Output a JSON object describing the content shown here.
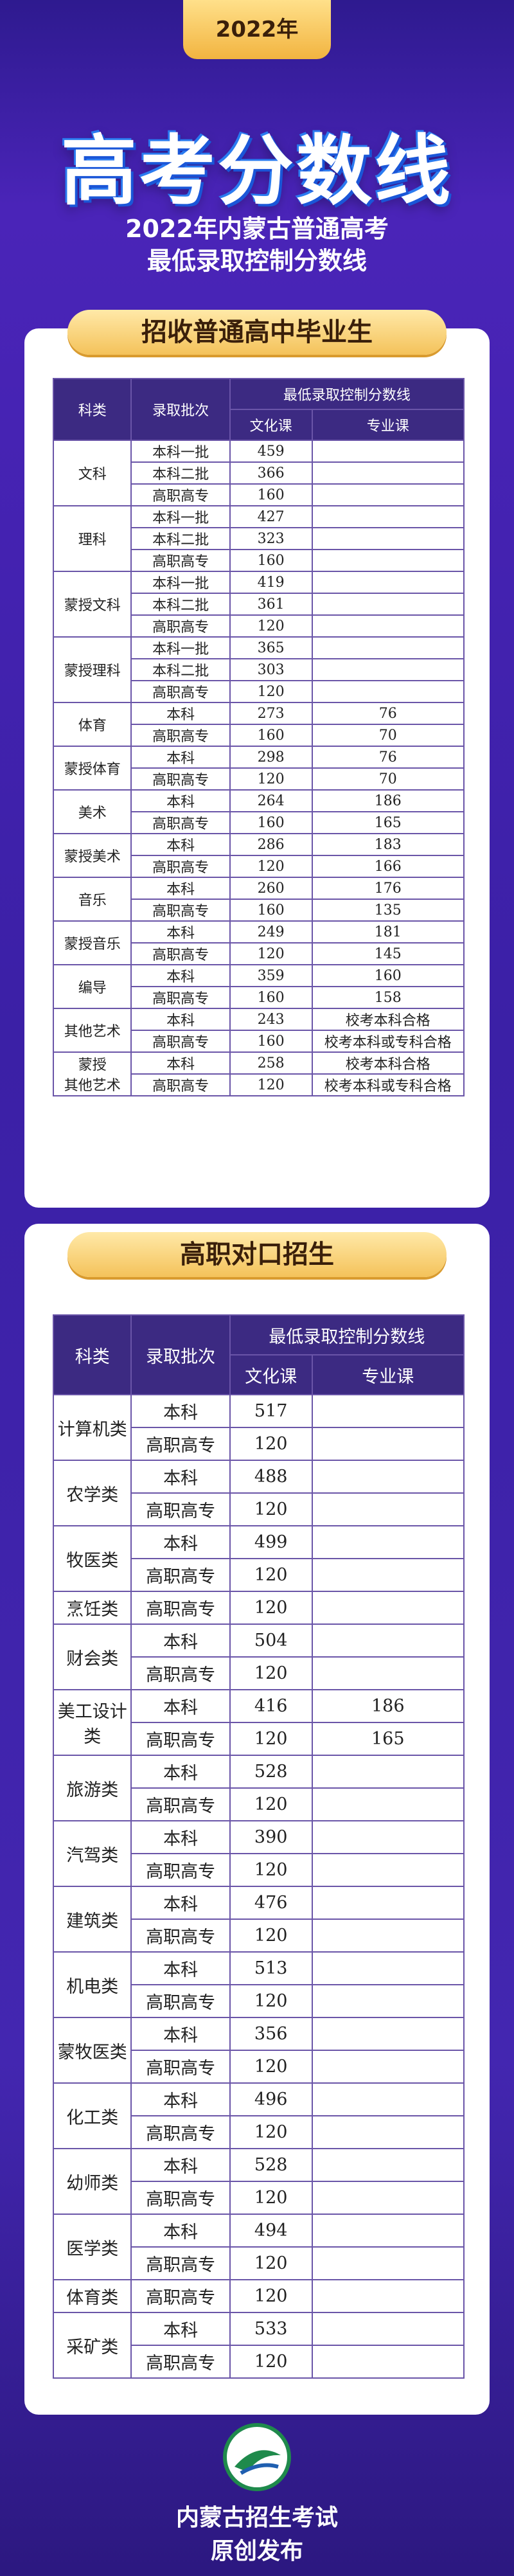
{
  "header": {
    "badge": "2022年",
    "title": "高考分数线",
    "subtitle": [
      "2022年内蒙古普通高考",
      "最低录取控制分数线"
    ]
  },
  "sections": [
    {
      "title": "招收普通高中毕业生",
      "columns": {
        "category": "科类",
        "batch": "录取批次",
        "score": "最低录取控制分数线",
        "culture": "文化课",
        "major": "专业课"
      },
      "groups": [
        {
          "label": [
            "文科"
          ],
          "rows": [
            [
              "本科一批",
              459
            ],
            [
              "本科二批",
              366
            ],
            [
              "高职高专",
              160
            ]
          ]
        },
        {
          "label": [
            "理科"
          ],
          "rows": [
            [
              "本科一批",
              427
            ],
            [
              "本科二批",
              323
            ],
            [
              "高职高专",
              160
            ]
          ]
        },
        {
          "label": [
            "蒙授文科"
          ],
          "rows": [
            [
              "本科一批",
              419
            ],
            [
              "本科二批",
              361
            ],
            [
              "高职高专",
              120
            ]
          ]
        },
        {
          "label": [
            "蒙授理科"
          ],
          "rows": [
            [
              "本科一批",
              365
            ],
            [
              "本科二批",
              303
            ],
            [
              "高职高专",
              120
            ]
          ]
        },
        {
          "label": [
            "体育"
          ],
          "rows": [
            [
              "本科",
              273,
              76
            ],
            [
              "高职高专",
              160,
              70
            ]
          ]
        },
        {
          "label": [
            "蒙授体育"
          ],
          "rows": [
            [
              "本科",
              298,
              76
            ],
            [
              "高职高专",
              120,
              70
            ]
          ]
        },
        {
          "label": [
            "美术"
          ],
          "rows": [
            [
              "本科",
              264,
              186
            ],
            [
              "高职高专",
              160,
              165
            ]
          ]
        },
        {
          "label": [
            "蒙授美术"
          ],
          "rows": [
            [
              "本科",
              286,
              183
            ],
            [
              "高职高专",
              120,
              166
            ]
          ]
        },
        {
          "label": [
            "音乐"
          ],
          "rows": [
            [
              "本科",
              260,
              176
            ],
            [
              "高职高专",
              160,
              135
            ]
          ]
        },
        {
          "label": [
            "蒙授音乐"
          ],
          "rows": [
            [
              "本科",
              249,
              181
            ],
            [
              "高职高专",
              120,
              145
            ]
          ]
        },
        {
          "label": [
            "编导"
          ],
          "rows": [
            [
              "本科",
              359,
              160
            ],
            [
              "高职高专",
              160,
              158
            ]
          ]
        },
        {
          "label": [
            "其他艺术"
          ],
          "rows": [
            [
              "本科",
              243,
              "校考本科合格"
            ],
            [
              "高职高专",
              160,
              "校考本科或专科合格"
            ]
          ]
        },
        {
          "label": [
            "蒙授",
            "其他艺术"
          ],
          "rows": [
            [
              "本科",
              258,
              "校考本科合格"
            ],
            [
              "高职高专",
              120,
              "校考本科或专科合格"
            ]
          ]
        }
      ]
    },
    {
      "title": "高职对口招生",
      "columns": {
        "category": "科类",
        "batch": "录取批次",
        "score": "最低录取控制分数线",
        "culture": "文化课",
        "major": "专业课"
      },
      "groups": [
        {
          "label": [
            "计算机类"
          ],
          "rows": [
            [
              "本科",
              517
            ],
            [
              "高职高专",
              120
            ]
          ]
        },
        {
          "label": [
            "农学类"
          ],
          "rows": [
            [
              "本科",
              488
            ],
            [
              "高职高专",
              120
            ]
          ]
        },
        {
          "label": [
            "牧医类"
          ],
          "rows": [
            [
              "本科",
              499
            ],
            [
              "高职高专",
              120
            ]
          ]
        },
        {
          "label": [
            "烹饪类"
          ],
          "rows": [
            [
              "高职高专",
              120
            ]
          ]
        },
        {
          "label": [
            "财会类"
          ],
          "rows": [
            [
              "本科",
              504
            ],
            [
              "高职高专",
              120
            ]
          ]
        },
        {
          "label": [
            "美工设计类"
          ],
          "rows": [
            [
              "本科",
              416,
              186
            ],
            [
              "高职高专",
              120,
              165
            ]
          ]
        },
        {
          "label": [
            "旅游类"
          ],
          "rows": [
            [
              "本科",
              528
            ],
            [
              "高职高专",
              120
            ]
          ]
        },
        {
          "label": [
            "汽驾类"
          ],
          "rows": [
            [
              "本科",
              390
            ],
            [
              "高职高专",
              120
            ]
          ]
        },
        {
          "label": [
            "建筑类"
          ],
          "rows": [
            [
              "本科",
              476
            ],
            [
              "高职高专",
              120
            ]
          ]
        },
        {
          "label": [
            "机电类"
          ],
          "rows": [
            [
              "本科",
              513
            ],
            [
              "高职高专",
              120
            ]
          ]
        },
        {
          "label": [
            "蒙牧医类"
          ],
          "rows": [
            [
              "本科",
              356
            ],
            [
              "高职高专",
              120
            ]
          ]
        },
        {
          "label": [
            "化工类"
          ],
          "rows": [
            [
              "本科",
              496
            ],
            [
              "高职高专",
              120
            ]
          ]
        },
        {
          "label": [
            "幼师类"
          ],
          "rows": [
            [
              "本科",
              528
            ],
            [
              "高职高专",
              120
            ]
          ]
        },
        {
          "label": [
            "医学类"
          ],
          "rows": [
            [
              "本科",
              494
            ],
            [
              "高职高专",
              120
            ]
          ]
        },
        {
          "label": [
            "体育类"
          ],
          "rows": [
            [
              "高职高专",
              120
            ]
          ]
        },
        {
          "label": [
            "采矿类"
          ],
          "rows": [
            [
              "本科",
              533
            ],
            [
              "高职高专",
              120
            ]
          ]
        }
      ]
    }
  ],
  "footer": {
    "org": "内蒙古招生考试",
    "note": "原创发布"
  }
}
